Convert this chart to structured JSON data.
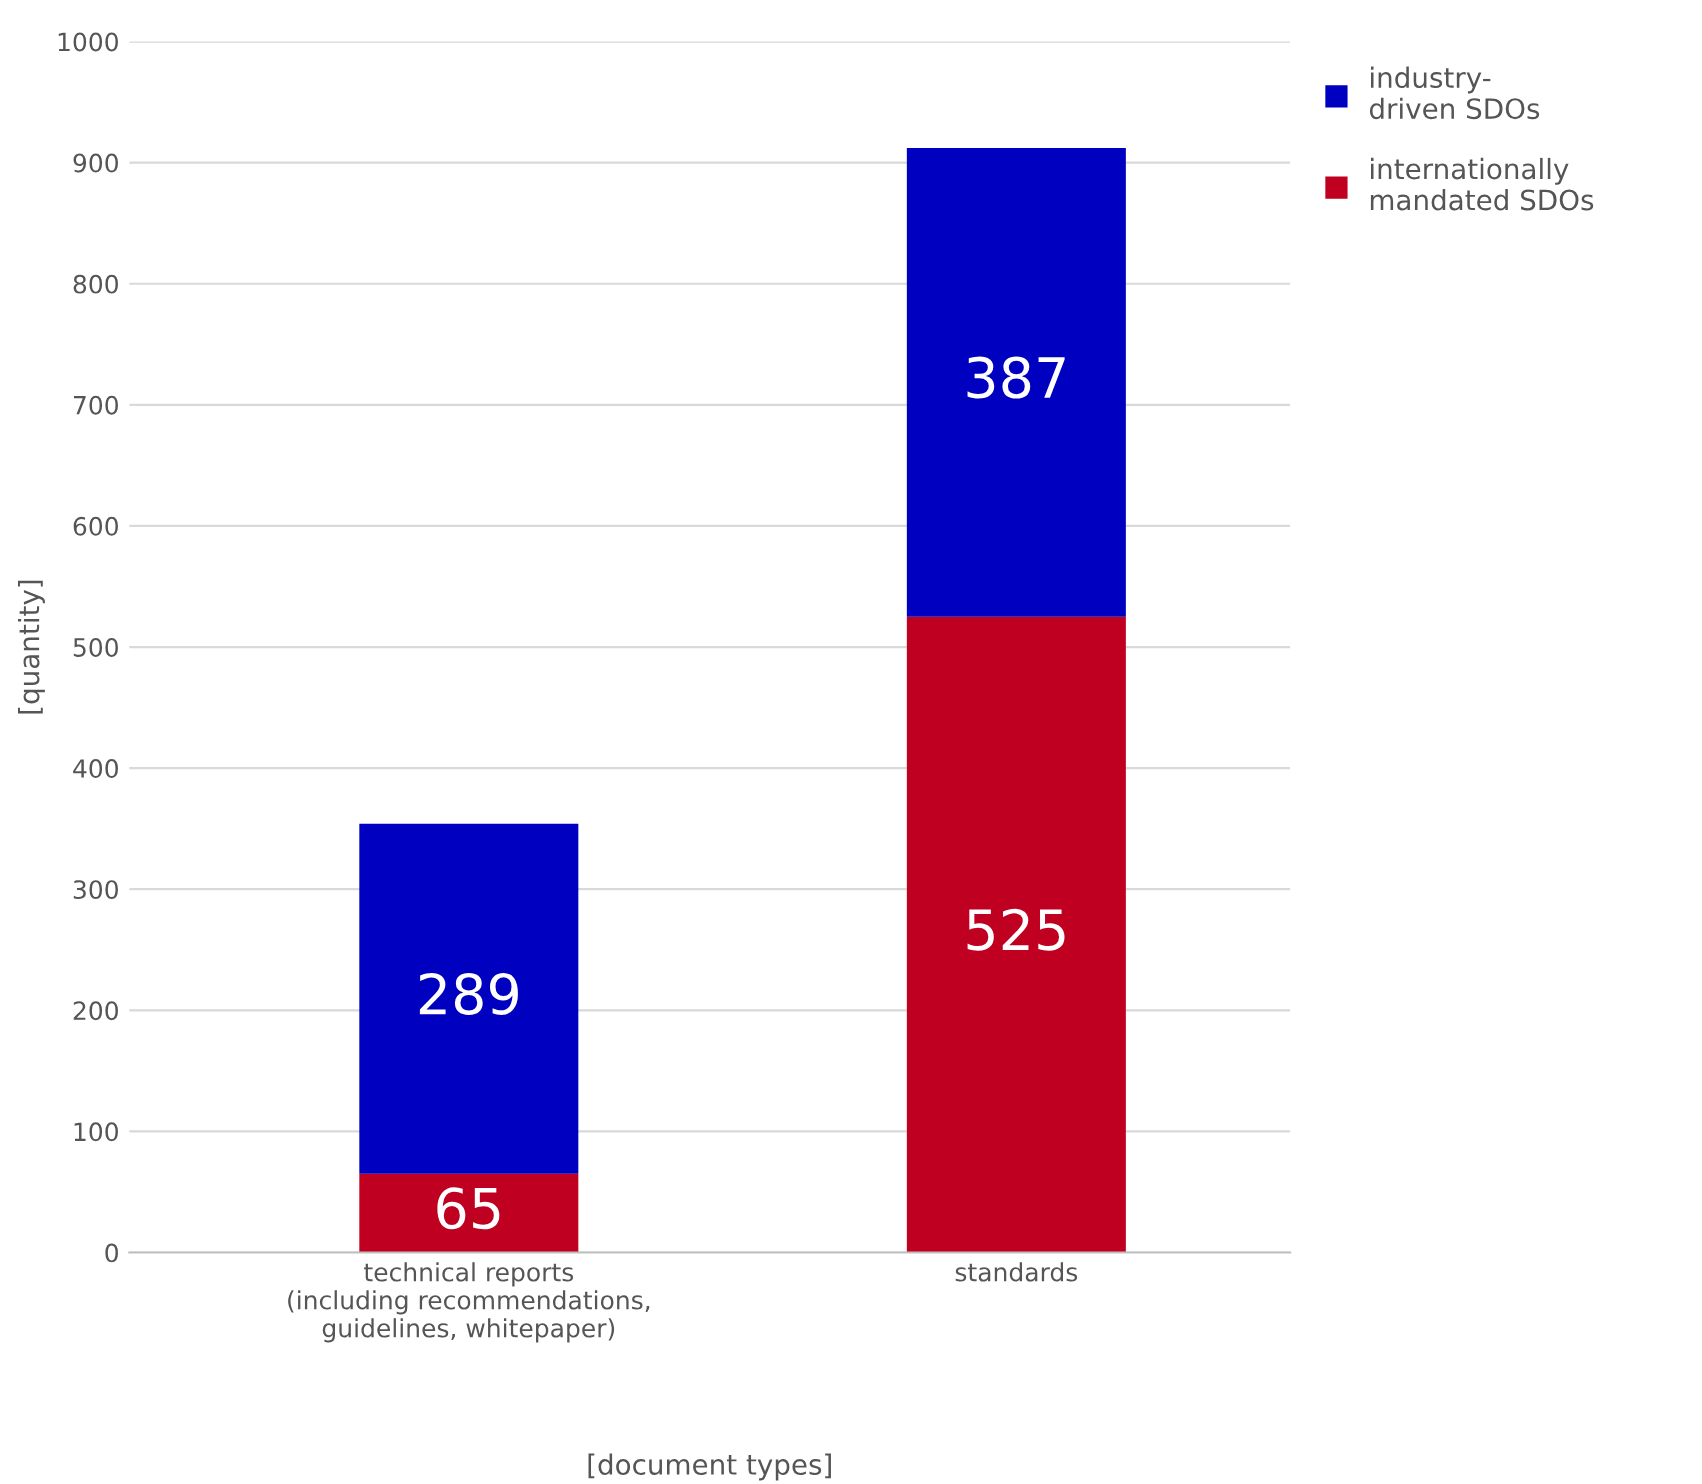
{
  "chart_data": {
    "type": "bar",
    "stacked": true,
    "xlabel": "[document types]",
    "ylabel": "[quantity]",
    "categories": [
      "technical reports\n(including recommendations,\nguidelines, whitepaper)",
      "standards"
    ],
    "series": [
      {
        "name": "internationally\nmandated SDOs",
        "color": "#c00020",
        "values": [
          65,
          525
        ]
      },
      {
        "name": "industry-\ndriven SDOs",
        "color": "#0000c0",
        "values": [
          289,
          387
        ]
      }
    ],
    "ylim": [
      0,
      1000
    ],
    "yticks": [
      0,
      100,
      200,
      300,
      400,
      500,
      600,
      700,
      800,
      900,
      1000
    ],
    "grid": "y",
    "legend": "top right",
    "data_labels": true
  }
}
